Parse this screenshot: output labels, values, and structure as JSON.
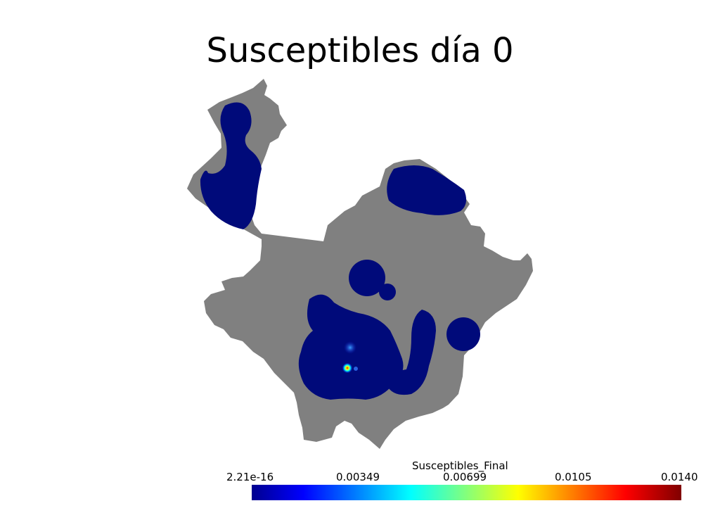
{
  "title": "Susceptibles día 0",
  "legend": {
    "title": "Susceptibles_Final",
    "ticks": [
      "2.21e-16",
      "0.00349",
      "0.00699",
      "0.0105",
      "0.0140"
    ],
    "min": 2.21e-16,
    "max": 0.014,
    "colormap": [
      "#00008f",
      "#0000ff",
      "#00ffff",
      "#ffff00",
      "#ff0000",
      "#800000"
    ]
  },
  "colors": {
    "region_fill": "#808080",
    "low_value_fill": "#000a7a"
  }
}
